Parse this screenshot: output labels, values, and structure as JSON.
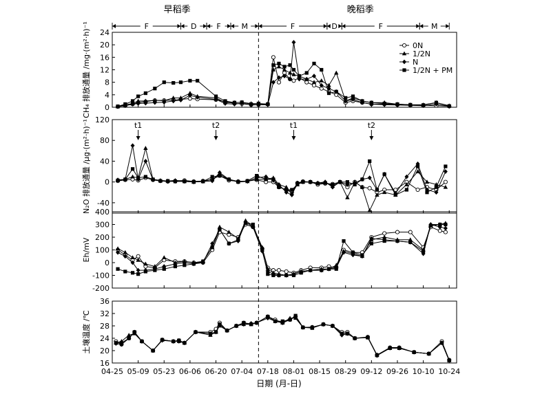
{
  "chart_data": {
    "type": "line",
    "seasons": [
      {
        "label": "早稻季",
        "x": "05-30"
      },
      {
        "label": "晚稻季",
        "x": "09-06"
      }
    ],
    "x_axis": {
      "label": "日期 (月-日)",
      "ticks": [
        "04-25",
        "05-09",
        "05-23",
        "06-06",
        "06-20",
        "07-04",
        "07-18",
        "08-01",
        "08-15",
        "08-29",
        "09-12",
        "09-26",
        "10-10",
        "10-24"
      ],
      "range": [
        "04-25",
        "10-28"
      ]
    },
    "phases": [
      {
        "label": "F",
        "from": "04-25",
        "to": "06-01"
      },
      {
        "label": "D",
        "from": "06-01",
        "to": "06-15"
      },
      {
        "label": "F",
        "from": "06-15",
        "to": "06-28"
      },
      {
        "label": "M",
        "from": "06-28",
        "to": "07-13"
      },
      {
        "label": "F",
        "from": "07-13",
        "to": "08-19"
      },
      {
        "label": "D",
        "from": "08-19",
        "to": "08-27"
      },
      {
        "label": "F",
        "from": "08-27",
        "to": "10-08"
      },
      {
        "label": "M",
        "from": "10-08",
        "to": "10-24"
      }
    ],
    "divider": "07-13",
    "legend": {
      "position": "top-right",
      "entries": [
        "0N",
        "1/2N",
        "N",
        "1/2N + PM"
      ]
    },
    "panels": [
      {
        "id": "ch4",
        "ylabel": "CH₄ 排放通量 /mg·(m²·h)⁻¹",
        "ylim": [
          0,
          24
        ],
        "yticks": [
          0,
          4,
          8,
          12,
          16,
          20,
          24
        ],
        "x": [
          "04-28",
          "05-02",
          "05-06",
          "05-09",
          "05-13",
          "05-18",
          "05-23",
          "05-28",
          "06-01",
          "06-06",
          "06-10",
          "06-20",
          "06-25",
          "06-30",
          "07-04",
          "07-09",
          "07-13",
          "07-18",
          "07-21",
          "07-24",
          "07-27",
          "07-30",
          "08-01",
          "08-04",
          "08-08",
          "08-12",
          "08-16",
          "08-20",
          "08-24",
          "08-29",
          "09-02",
          "09-07",
          "09-12",
          "09-19",
          "09-26",
          "10-03",
          "10-10",
          "10-17",
          "10-24"
        ],
        "series": [
          {
            "name": "0N",
            "values": [
              0.2,
              0.5,
              1.0,
              1.5,
              1.8,
              2.2,
              2.2,
              2.3,
              2.5,
              2.8,
              2.6,
              2.4,
              1.8,
              1.2,
              1.1,
              0.8,
              0.8,
              1.0,
              16.0,
              8.0,
              11.0,
              9.0,
              8.5,
              9.5,
              8.0,
              7.0,
              6.0,
              5.0,
              4.0,
              1.5,
              2.0,
              1.5,
              1.0,
              1.0,
              0.8,
              0.7,
              0.6,
              0.5,
              0.3
            ]
          },
          {
            "name": "1/2N",
            "values": [
              0.2,
              0.8,
              1.2,
              2.0,
              2.0,
              2.2,
              2.1,
              3.0,
              3.0,
              4.5,
              3.5,
              3.0,
              1.5,
              1.5,
              1.6,
              1.2,
              1.2,
              1.0,
              12.0,
              13.0,
              12.0,
              11.0,
              10.5,
              10.0,
              9.0,
              8.0,
              8.5,
              7.0,
              11.0,
              2.0,
              3.0,
              2.0,
              1.5,
              1.5,
              1.0,
              0.8,
              0.8,
              1.5,
              0.5
            ]
          },
          {
            "name": "N",
            "values": [
              0.2,
              0.5,
              1.0,
              1.2,
              1.3,
              1.5,
              1.6,
              2.0,
              2.3,
              3.8,
              3.2,
              2.5,
              1.2,
              1.0,
              1.3,
              0.7,
              0.8,
              0.8,
              8.0,
              9.5,
              10.0,
              9.0,
              20.8,
              9.0,
              9.0,
              10.0,
              7.0,
              6.0,
              5.0,
              2.0,
              2.5,
              1.5,
              1.0,
              0.8,
              0.7,
              0.6,
              0.5,
              1.0,
              0.3
            ]
          },
          {
            "name": "1/2N + PM",
            "values": [
              0.3,
              1.0,
              2.0,
              3.5,
              4.5,
              6.0,
              8.0,
              7.8,
              8.0,
              8.5,
              8.5,
              3.5,
              2.0,
              1.5,
              1.6,
              1.0,
              1.2,
              1.0,
              13.5,
              14.0,
              13.0,
              13.5,
              12.0,
              10.0,
              11.0,
              14.0,
              12.0,
              4.5,
              5.0,
              3.0,
              3.5,
              2.0,
              1.5,
              1.2,
              1.0,
              0.8,
              0.7,
              1.5,
              0.4
            ]
          }
        ]
      },
      {
        "id": "n2o",
        "ylabel": "N₂O 排放通量 /μg·(m²·h)⁻¹",
        "ylim": [
          -60,
          120
        ],
        "yticks": [
          -40,
          0,
          40,
          80,
          120
        ],
        "annotations": [
          {
            "label": "t1",
            "x": "05-09"
          },
          {
            "label": "t2",
            "x": "06-20"
          },
          {
            "label": "t1",
            "x": "08-01"
          },
          {
            "label": "t2",
            "x": "09-12"
          }
        ],
        "x": [
          "04-28",
          "05-02",
          "05-06",
          "05-09",
          "05-13",
          "05-17",
          "05-21",
          "05-25",
          "05-29",
          "06-03",
          "06-08",
          "06-13",
          "06-18",
          "06-22",
          "06-27",
          "07-02",
          "07-07",
          "07-12",
          "07-17",
          "07-21",
          "07-24",
          "07-28",
          "07-31",
          "08-03",
          "08-06",
          "08-10",
          "08-14",
          "08-18",
          "08-22",
          "08-26",
          "08-30",
          "09-03",
          "09-07",
          "09-11",
          "09-15",
          "09-19",
          "09-25",
          "10-01",
          "10-07",
          "10-12",
          "10-17",
          "10-22"
        ],
        "series": [
          {
            "name": "0N",
            "values": [
              2,
              4,
              5,
              3,
              8,
              4,
              2,
              1,
              2,
              3,
              1,
              2,
              5,
              12,
              3,
              1,
              2,
              4,
              0,
              0,
              -10,
              -15,
              -20,
              -2,
              1,
              0,
              -5,
              -3,
              -4,
              0,
              -10,
              0,
              -10,
              -12,
              -20,
              -15,
              -15,
              0,
              -15,
              -10,
              -15,
              0
            ]
          },
          {
            "name": "1/2N",
            "values": [
              3,
              5,
              10,
              8,
              65,
              5,
              3,
              2,
              3,
              2,
              0,
              1,
              5,
              15,
              5,
              1,
              1,
              5,
              5,
              8,
              -5,
              -10,
              -22,
              -5,
              0,
              0,
              -2,
              0,
              -8,
              0,
              -30,
              0,
              -10,
              -55,
              -25,
              -20,
              -25,
              -5,
              20,
              0,
              -5,
              -10
            ]
          },
          {
            "name": "N",
            "values": [
              4,
              5,
              70,
              5,
              40,
              4,
              2,
              1,
              1,
              1,
              0,
              1,
              2,
              18,
              5,
              0,
              1,
              8,
              10,
              3,
              -5,
              -20,
              -25,
              -2,
              0,
              0,
              -2,
              0,
              -10,
              0,
              -5,
              -2,
              5,
              8,
              -15,
              15,
              -22,
              10,
              35,
              -15,
              -20,
              20
            ]
          },
          {
            "name": "1/2N + PM",
            "values": [
              3,
              5,
              25,
              8,
              10,
              5,
              2,
              2,
              1,
              1,
              0,
              1,
              10,
              12,
              5,
              0,
              2,
              12,
              5,
              5,
              -10,
              -15,
              -15,
              -5,
              0,
              0,
              -3,
              -2,
              -5,
              0,
              0,
              -5,
              5,
              40,
              -15,
              15,
              -25,
              -15,
              30,
              -20,
              -10,
              30
            ]
          }
        ]
      },
      {
        "id": "eh",
        "ylabel": "Eh/mV",
        "ylim": [
          -200,
          400
        ],
        "yticks": [
          -200,
          -100,
          0,
          100,
          200,
          300,
          400
        ],
        "x": [
          "04-28",
          "05-02",
          "05-06",
          "05-09",
          "05-13",
          "05-18",
          "05-23",
          "05-29",
          "06-03",
          "06-08",
          "06-13",
          "06-18",
          "06-22",
          "06-27",
          "07-02",
          "07-06",
          "07-10",
          "07-15",
          "07-18",
          "07-21",
          "07-24",
          "07-28",
          "08-01",
          "08-05",
          "08-10",
          "08-16",
          "08-20",
          "08-24",
          "08-28",
          "09-02",
          "09-07",
          "09-12",
          "09-19",
          "09-26",
          "10-03",
          "10-10",
          "10-14",
          "10-19",
          "10-22"
        ],
        "series": [
          {
            "name": "0N",
            "values": [
              100,
              60,
              20,
              50,
              -30,
              -40,
              20,
              10,
              10,
              0,
              0,
              100,
              240,
              220,
              200,
              300,
              280,
              110,
              -40,
              -60,
              -60,
              -70,
              -80,
              -60,
              -40,
              -40,
              -30,
              -40,
              100,
              80,
              80,
              200,
              230,
              240,
              240,
              120,
              280,
              250,
              240
            ]
          },
          {
            "name": "1/2N",
            "values": [
              110,
              80,
              40,
              20,
              -10,
              -30,
              40,
              0,
              10,
              0,
              10,
              120,
              280,
              240,
              190,
              330,
              290,
              120,
              -50,
              -80,
              -90,
              -100,
              -90,
              -70,
              -60,
              -50,
              -50,
              -20,
              90,
              70,
              50,
              180,
              200,
              180,
              180,
              100,
              300,
              300,
              310
            ]
          },
          {
            "name": "N",
            "values": [
              80,
              50,
              0,
              -60,
              -60,
              -50,
              -30,
              -10,
              0,
              -10,
              0,
              150,
              260,
              150,
              170,
              320,
              280,
              90,
              -70,
              -90,
              -100,
              -100,
              -90,
              -70,
              -60,
              -60,
              -50,
              -40,
              80,
              60,
              50,
              190,
              180,
              170,
              160,
              70,
              300,
              280,
              270
            ]
          },
          {
            "name": "1/2N + PM",
            "values": [
              -50,
              -70,
              -80,
              -90,
              -70,
              -60,
              -50,
              -30,
              -20,
              -10,
              10,
              120,
              260,
              150,
              180,
              310,
              300,
              100,
              -90,
              -100,
              -100,
              -100,
              -100,
              -80,
              -60,
              -60,
              -50,
              -50,
              170,
              80,
              60,
              150,
              170,
              170,
              160,
              90,
              290,
              300,
              300
            ]
          }
        ]
      },
      {
        "id": "soiltemp",
        "ylabel": "土壤温度 /℃",
        "ylim": [
          16,
          36
        ],
        "yticks": [
          16,
          20,
          24,
          28,
          32,
          36
        ],
        "x": [
          "04-27",
          "04-30",
          "05-04",
          "05-07",
          "05-11",
          "05-17",
          "05-22",
          "05-28",
          "05-31",
          "06-03",
          "06-09",
          "06-17",
          "06-20",
          "06-22",
          "06-26",
          "07-01",
          "07-05",
          "07-09",
          "07-12",
          "07-18",
          "07-22",
          "07-26",
          "07-30",
          "08-02",
          "08-06",
          "08-11",
          "08-17",
          "08-22",
          "08-27",
          "08-30",
          "09-03",
          "09-10",
          "09-15",
          "09-22",
          "09-27",
          "10-05",
          "10-13",
          "10-20",
          "10-24"
        ],
        "series": [
          {
            "name": "0N",
            "values": [
              23,
              22,
              24,
              26,
              23,
              20,
              23.5,
              23,
              23.3,
              22.5,
              26,
              26,
              27,
              29,
              26.5,
              28,
              29,
              28.6,
              29,
              31,
              30,
              29,
              30,
              31,
              27.5,
              27.6,
              28.5,
              28,
              26,
              26,
              24,
              24.4,
              18.6,
              21,
              21,
              19.5,
              19,
              23,
              17
            ]
          },
          {
            "name": "1/2N",
            "values": [
              22.5,
              23,
              25,
              25.5,
              23,
              20,
              23.5,
              23,
              23,
              22.5,
              26,
              25,
              26,
              28,
              26.5,
              28,
              28.5,
              28.5,
              29,
              31,
              29.5,
              29,
              30.5,
              30.5,
              27.5,
              27.5,
              28.5,
              28,
              25.5,
              25.5,
              24,
              24.3,
              18.5,
              20.8,
              20.8,
              19.5,
              19,
              22.5,
              16.8
            ]
          },
          {
            "name": "N",
            "values": [
              22.3,
              22,
              24,
              26,
              23,
              20,
              23.3,
              23,
              23,
              22.5,
              26,
              25.5,
              26,
              28.5,
              26.5,
              28,
              28.5,
              28.8,
              29,
              30.5,
              29.5,
              29,
              30,
              31,
              27.5,
              27.5,
              28.5,
              28,
              25,
              25.5,
              24,
              24.3,
              18.4,
              20.8,
              20.8,
              19.5,
              19,
              22.5,
              16.8
            ]
          },
          {
            "name": "1/2N + PM",
            "values": [
              22.5,
              22.5,
              24,
              26,
              23,
              20,
              23.5,
              23,
              23.3,
              22.5,
              26,
              25.5,
              26,
              28.5,
              26.5,
              28,
              29,
              28.5,
              29,
              31,
              29.5,
              29.5,
              30,
              31.3,
              27.5,
              27.3,
              28.5,
              28,
              25.5,
              25.5,
              24,
              24.2,
              18.5,
              20.8,
              20.8,
              19.5,
              19,
              22.5,
              16.8
            ]
          }
        ]
      }
    ]
  }
}
